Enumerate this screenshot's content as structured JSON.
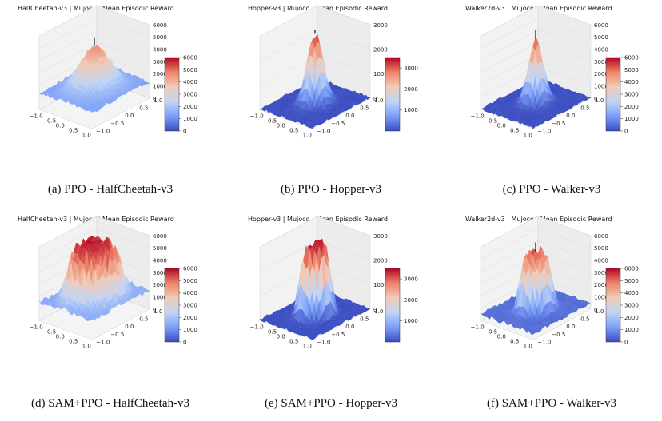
{
  "figure": {
    "colormap": [
      "#3b4cc0",
      "#7b9ff9",
      "#c0d4f5",
      "#f2cbb7",
      "#ee8468",
      "#b40426"
    ]
  },
  "chart_data": [
    {
      "type": "surface3d",
      "id": "a",
      "title": "HalfCheetah-v3 | Mujoco | Mean Episodic Reward",
      "caption": "(a) PPO - HalfCheetah-v3",
      "x_ticks": [
        "−1.0",
        "−0.5",
        "0.0",
        "0.5",
        "1.0"
      ],
      "y_ticks": [
        "1.0",
        "0.5",
        "0.0",
        "−0.5",
        "−1.0"
      ],
      "z_ticks": [
        "0",
        "1000",
        "2000",
        "3000",
        "4000",
        "5000",
        "6000"
      ],
      "zlim": [
        0,
        6000
      ],
      "colorbar_ticks": [
        "0",
        "1000",
        "2000",
        "3000",
        "4000",
        "5000",
        "6000"
      ],
      "colorbar_range": [
        0,
        6000
      ],
      "peak_value": 4600,
      "floor_value": 1300,
      "peak_width": 0.55,
      "plateau": false
    },
    {
      "type": "surface3d",
      "id": "b",
      "title": "Hopper-v3 | Mujoco | Mean Episodic Reward",
      "caption": "(b) PPO - Hopper-v3",
      "x_ticks": [
        "−1.0",
        "−0.5",
        "0.0",
        "0.5",
        "1.0"
      ],
      "y_ticks": [
        "1.0",
        "0.5",
        "0.0",
        "−0.5",
        "−1.0"
      ],
      "z_ticks": [
        "0",
        "1000",
        "2000",
        "3000"
      ],
      "zlim": [
        0,
        3500
      ],
      "colorbar_ticks": [
        "1000",
        "2000",
        "3000"
      ],
      "colorbar_range": [
        0,
        3500
      ],
      "peak_value": 3300,
      "floor_value": 0,
      "peak_width": 0.3,
      "plateau": false
    },
    {
      "type": "surface3d",
      "id": "c",
      "title": "Walker2d-v3 | Mujoco | Mean Episodic Reward",
      "caption": "(c) PPO - Walker-v3",
      "x_ticks": [
        "−1.0",
        "−0.5",
        "0.0",
        "0.5",
        "1.0"
      ],
      "y_ticks": [
        "1.0",
        "0.5",
        "0.0",
        "−0.5",
        "−1.0"
      ],
      "z_ticks": [
        "0",
        "1000",
        "2000",
        "3000",
        "4000",
        "5000",
        "6000"
      ],
      "zlim": [
        0,
        6000
      ],
      "colorbar_ticks": [
        "0",
        "1000",
        "2000",
        "3000",
        "4000",
        "5000",
        "6000"
      ],
      "colorbar_range": [
        0,
        6000
      ],
      "peak_value": 5200,
      "floor_value": 0,
      "peak_width": 0.28,
      "plateau": false
    },
    {
      "type": "surface3d",
      "id": "d",
      "title": "HalfCheetah-v3 | Mujoco | Mean Episodic Reward",
      "caption": "(d) SAM+PPO - HalfCheetah-v3",
      "x_ticks": [
        "−1.0",
        "−0.5",
        "0.0",
        "0.5",
        "1.0"
      ],
      "y_ticks": [
        "1.0",
        "0.5",
        "0.0",
        "−0.5",
        "−1.0"
      ],
      "z_ticks": [
        "0",
        "1000",
        "2000",
        "3000",
        "4000",
        "5000",
        "6000"
      ],
      "zlim": [
        0,
        6000
      ],
      "colorbar_ticks": [
        "0",
        "1000",
        "2000",
        "3000",
        "4000",
        "5000",
        "6000"
      ],
      "colorbar_range": [
        0,
        6000
      ],
      "peak_value": 5800,
      "floor_value": 1500,
      "peak_width": 0.75,
      "plateau": true
    },
    {
      "type": "surface3d",
      "id": "e",
      "title": "Hopper-v3 | Mujoco | Mean Episodic Reward",
      "caption": "(e) SAM+PPO - Hopper-v3",
      "x_ticks": [
        "−1.0",
        "−0.5",
        "0.0",
        "0.5",
        "1.0"
      ],
      "y_ticks": [
        "1.0",
        "0.5",
        "0.0",
        "−0.5",
        "−1.0"
      ],
      "z_ticks": [
        "0",
        "1000",
        "2000",
        "3000"
      ],
      "zlim": [
        0,
        3500
      ],
      "colorbar_ticks": [
        "1000",
        "2000",
        "3000"
      ],
      "colorbar_range": [
        0,
        3500
      ],
      "peak_value": 3400,
      "floor_value": 0,
      "peak_width": 0.45,
      "plateau": true
    },
    {
      "type": "surface3d",
      "id": "f",
      "title": "Walker2d-v3 | Mujoco | Mean Episodic Reward",
      "caption": "(f) SAM+PPO - Walker-v3",
      "x_ticks": [
        "−1.0",
        "−0.5",
        "0.0",
        "0.5",
        "1.0"
      ],
      "y_ticks": [
        "1.0",
        "0.5",
        "0.0",
        "−0.5",
        "−1.0"
      ],
      "z_ticks": [
        "0",
        "1000",
        "2000",
        "3000",
        "4000",
        "5000",
        "6000"
      ],
      "zlim": [
        0,
        6000
      ],
      "colorbar_ticks": [
        "0",
        "1000",
        "2000",
        "3000",
        "4000",
        "5000",
        "6000"
      ],
      "colorbar_range": [
        0,
        6000
      ],
      "peak_value": 5000,
      "floor_value": 500,
      "peak_width": 0.45,
      "plateau": true
    }
  ]
}
